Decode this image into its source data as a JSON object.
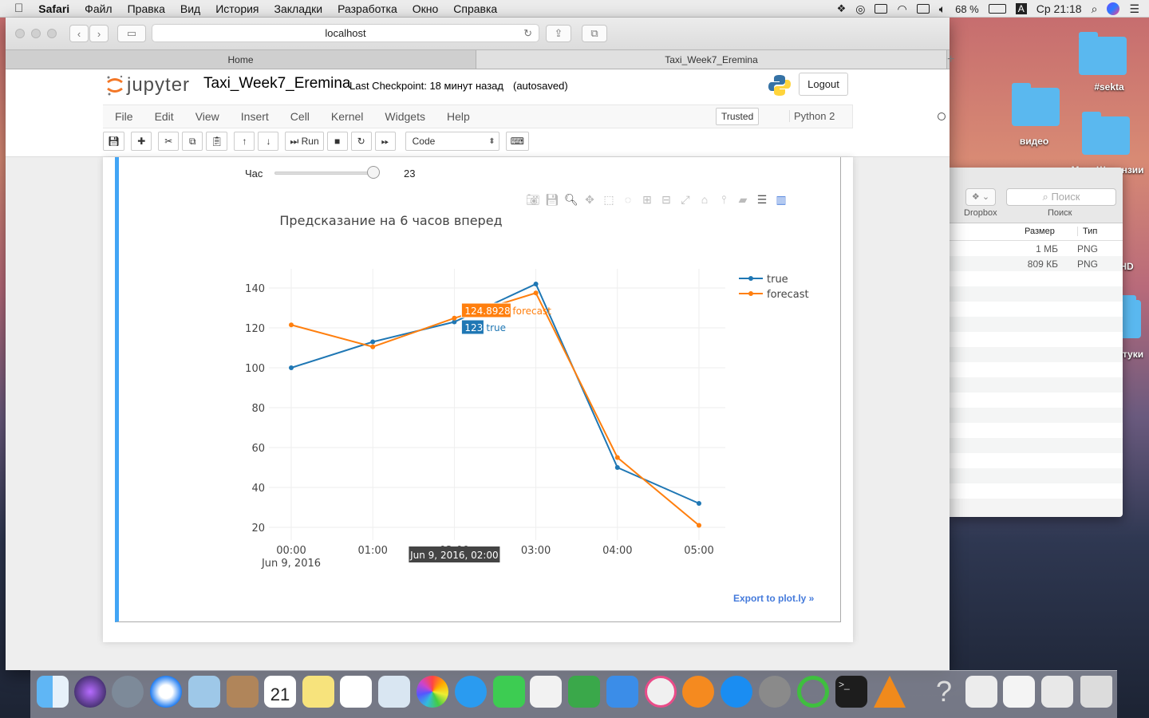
{
  "menubar": {
    "app": "Safari",
    "items": [
      "Файл",
      "Правка",
      "Вид",
      "История",
      "Закладки",
      "Разработка",
      "Окно",
      "Справка"
    ],
    "battery": "68 %",
    "input_lang": "A",
    "clock": "Ср 21:18"
  },
  "desktop": {
    "labels": [
      "#sekta",
      "видео",
      "Мои_Штрэнзии",
      "HD",
      "штуки"
    ]
  },
  "finder": {
    "dropbox_label": "Dropbox",
    "search_placeholder": "Поиск",
    "search_label": "Поиск",
    "col_size": "Размер",
    "col_type": "Тип",
    "rows": [
      {
        "size": "1 МБ",
        "type": "PNG"
      },
      {
        "size": "809 КБ",
        "type": "PNG"
      }
    ]
  },
  "safari": {
    "url": "localhost",
    "tabs": [
      {
        "label": "Home",
        "active": false
      },
      {
        "label": "Taxi_Week7_Eremina",
        "active": true
      }
    ]
  },
  "jupyter": {
    "logo_text": "jupyter",
    "notebook_title": "Taxi_Week7_Eremina",
    "checkpoint": "Last Checkpoint: 18 минут назад",
    "autosaved": "(autosaved)",
    "logout": "Logout",
    "menu": [
      "File",
      "Edit",
      "View",
      "Insert",
      "Cell",
      "Kernel",
      "Widgets",
      "Help"
    ],
    "trusted": "Trusted",
    "kernel": "Python 2",
    "run_label": "Run",
    "cell_type": "Code"
  },
  "widget": {
    "label": "Час",
    "value": "23",
    "value_fraction": 1.0
  },
  "export_link": "Export to plot.ly »",
  "chart_data": {
    "type": "line",
    "title": "Предсказание на 6 часов вперед",
    "x": [
      "00:00",
      "01:00",
      "02:00",
      "03:00",
      "04:00",
      "05:00"
    ],
    "x_sub": "Jun 9, 2016",
    "x_hover_index": 2,
    "x_hover_label": "Jun 9, 2016, 02:00",
    "ylim": [
      15,
      150
    ],
    "yticks": [
      20,
      40,
      60,
      80,
      100,
      120,
      140
    ],
    "grid": true,
    "legend_position": "top-right",
    "series": [
      {
        "name": "true",
        "color": "#1f77b4",
        "values": [
          100,
          113,
          123,
          142,
          50,
          32
        ]
      },
      {
        "name": "forecast",
        "color": "#ff7f0e",
        "values": [
          121.5,
          110.5,
          124.8928,
          137.5,
          55,
          21
        ]
      }
    ],
    "hover_labels": [
      {
        "series": "forecast",
        "value": "124.8928"
      },
      {
        "series": "true",
        "value": "123"
      }
    ]
  }
}
